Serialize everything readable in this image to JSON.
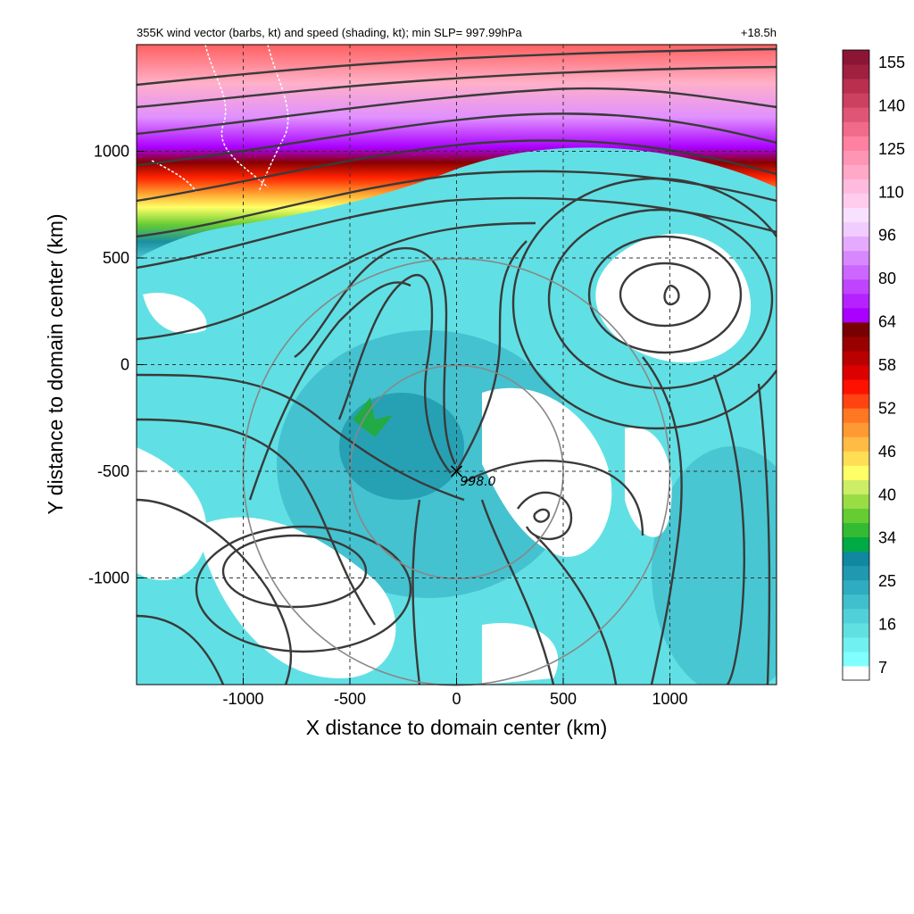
{
  "chart_data": {
    "type": "heatmap",
    "title": "355K wind vector (barbs, kt) and speed (shading, kt); min SLP= 997.99hPa",
    "forecast_hour": "+18.5h",
    "xlabel": "X distance to domain center (km)",
    "ylabel": "Y distance to domain center (km)",
    "xlim": [
      -1500,
      1500
    ],
    "ylim": [
      -1500,
      1500
    ],
    "x_ticks": [
      -1000,
      -500,
      0,
      500,
      1000
    ],
    "y_ticks": [
      -1000,
      -500,
      0,
      500,
      1000
    ],
    "grid": true,
    "colorbar": {
      "label_values": [
        7,
        16,
        25,
        34,
        40,
        46,
        52,
        58,
        64,
        80,
        96,
        110,
        125,
        140,
        155
      ],
      "colors": [
        "#ffffff",
        "#80ffff",
        "#70f0f0",
        "#60e0e0",
        "#50d0d8",
        "#40c0cc",
        "#30acc0",
        "#2098b0",
        "#1088a0",
        "#00aa44",
        "#33bb33",
        "#66cc33",
        "#99dd44",
        "#ccee66",
        "#ffff66",
        "#ffdd55",
        "#ffbb44",
        "#ff9933",
        "#ff7722",
        "#ff4411",
        "#ff1100",
        "#dd0000",
        "#bb0000",
        "#990000",
        "#770000",
        "#aa00ff",
        "#b522ff",
        "#c044ff",
        "#cc66ff",
        "#d888ff",
        "#e4aaff",
        "#f0ccff",
        "#f8e0ff",
        "#ffccee",
        "#ffbbdd",
        "#ffa8c8",
        "#ff95b5",
        "#ff80a0",
        "#f06a8a",
        "#e05575",
        "#cc4060",
        "#b8304e",
        "#a02040",
        "#8c1535"
      ]
    },
    "circles_radius_km": [
      500,
      1000
    ],
    "circle_center_km": [
      0,
      -500
    ],
    "storm_marker": {
      "x": 0,
      "y": -500,
      "label": "998.0"
    }
  }
}
